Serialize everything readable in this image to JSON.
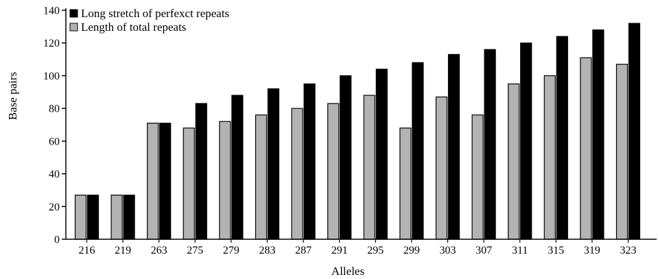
{
  "chart_data": {
    "type": "bar",
    "xlabel": "Alleles",
    "ylabel": "Base pairs",
    "ylim": [
      0,
      140
    ],
    "yticks": [
      0,
      20,
      40,
      60,
      80,
      100,
      120,
      140
    ],
    "grid": false,
    "legend_placement": "top-left",
    "categories": [
      "216",
      "219",
      "263",
      "275",
      "279",
      "283",
      "287",
      "291",
      "295",
      "299",
      "303",
      "307",
      "311",
      "315",
      "319",
      "323"
    ],
    "series": [
      {
        "name": "Length of total repeats",
        "color": "#b3b3b3",
        "values": [
          27,
          27,
          71,
          68,
          72,
          76,
          80,
          83,
          88,
          68,
          87,
          76,
          95,
          100,
          111,
          107
        ]
      },
      {
        "name": "Long stretch of perfexct repeats",
        "color": "#000000",
        "values": [
          27,
          27,
          71,
          83,
          88,
          92,
          95,
          100,
          104,
          108,
          113,
          116,
          120,
          124,
          128,
          132
        ]
      }
    ],
    "legend": [
      {
        "label": "Long stretch of perfexct repeats",
        "color": "#000000"
      },
      {
        "label": "Length of total repeats",
        "color": "#b3b3b3"
      }
    ]
  }
}
